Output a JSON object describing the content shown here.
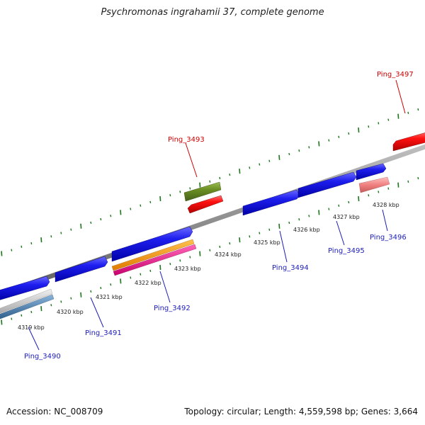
{
  "title": "Psychromonas ingrahamii 37, complete genome",
  "footer": {
    "accession": "Accession: NC_008709",
    "stats": "Topology: circular; Length: 4,559,598 bp; Genes: 3,664"
  },
  "colors": {
    "backbone": "#8f8f8f",
    "tick": "#1a7a1a",
    "cds_forward": "#1e1eef",
    "cds_reverse_red": "#ff1111",
    "olive": "#6b8e23",
    "orange": "#ff9900",
    "magenta": "#ff1493",
    "pink": "#f08080",
    "steel": "#4682b4",
    "light_gray": "#c8c8c8",
    "label_blue": "#1d1db8",
    "label_red": "#cc0000"
  },
  "scale_labels": [
    "4319 kbp",
    "4320 kbp",
    "4321 kbp",
    "4322 kbp",
    "4323 kbp",
    "4324 kbp",
    "4325 kbp",
    "4326 kbp",
    "4327 kbp",
    "4328 kbp"
  ],
  "gene_labels": {
    "ping_3490": "Ping_3490",
    "ping_3491": "Ping_3491",
    "ping_3492": "Ping_3492",
    "ping_3493": "Ping_3493",
    "ping_3494": "Ping_3494",
    "ping_3495": "Ping_3495",
    "ping_3496": "Ping_3496",
    "ping_3497": "Ping_3497"
  }
}
